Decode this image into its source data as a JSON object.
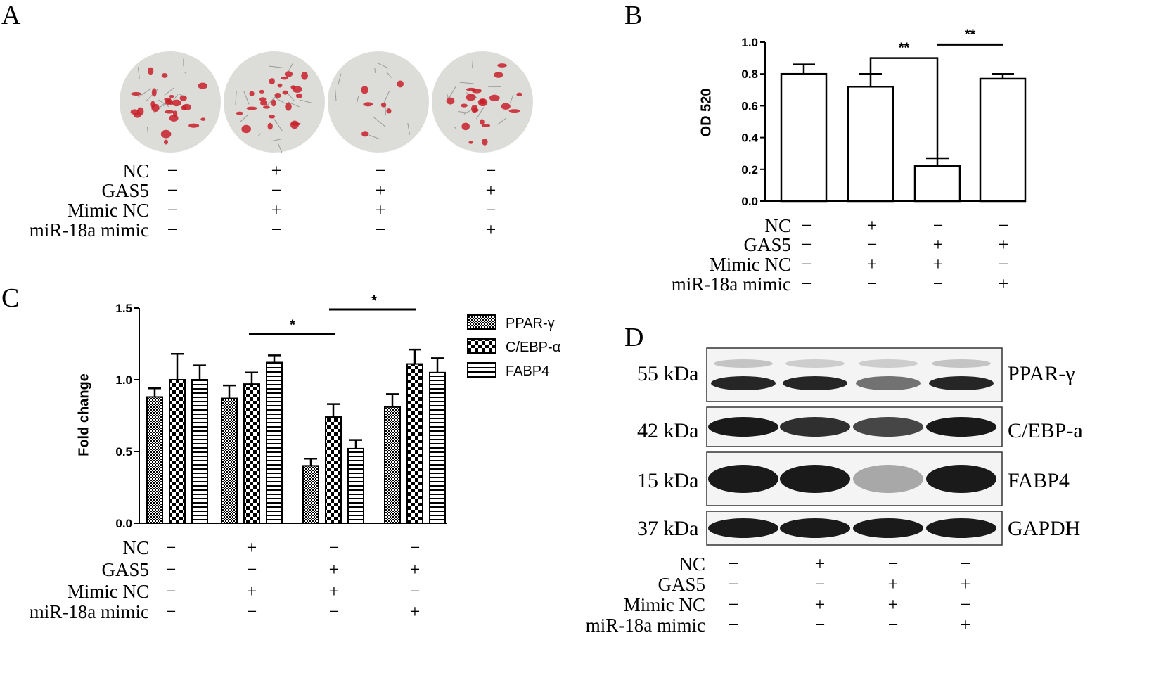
{
  "panels": {
    "a": "A",
    "b": "B",
    "c": "C",
    "d": "D"
  },
  "conditions": {
    "labels": [
      "NC",
      "GAS5",
      "Mimic NC",
      "miR-18a mimic"
    ],
    "marks": [
      [
        "−",
        "+",
        "−",
        "−"
      ],
      [
        "−",
        "−",
        "+",
        "+"
      ],
      [
        "−",
        "+",
        "+",
        "−"
      ],
      [
        "−",
        "−",
        "−",
        "+"
      ]
    ]
  },
  "panel_d": {
    "bands": [
      {
        "size": "55 kDa",
        "protein": "PPAR-γ"
      },
      {
        "size": "42 kDa",
        "protein": "C/EBP-a"
      },
      {
        "size": "15 kDa",
        "protein": "FABP4"
      },
      {
        "size": "37 kDa",
        "protein": "GAPDH"
      }
    ]
  },
  "colors": {
    "stain_red": "#c8202a",
    "background_cell": "#dcdcd8",
    "blot_band": "#1a1a1a"
  },
  "chart_data": [
    {
      "id": "B",
      "type": "bar",
      "categories": [
        "1",
        "2",
        "3",
        "4"
      ],
      "values": [
        0.8,
        0.72,
        0.22,
        0.77
      ],
      "errors": [
        0.06,
        0.08,
        0.05,
        0.03
      ],
      "ylabel": "OD 520",
      "ylim": [
        0,
        1.0
      ],
      "yticks": [
        "0.0",
        "0.2",
        "0.4",
        "0.6",
        "0.8",
        "1.0"
      ],
      "significance": [
        {
          "from": 1,
          "to": 2,
          "label": "**"
        },
        {
          "from": 2,
          "to": 3,
          "label": "**"
        }
      ]
    },
    {
      "id": "C",
      "type": "bar",
      "categories": [
        "1",
        "2",
        "3",
        "4"
      ],
      "ylabel": "Fold change",
      "ylim": [
        0,
        1.5
      ],
      "yticks": [
        "0.0",
        "0.5",
        "1.0",
        "1.5"
      ],
      "series": [
        {
          "name": "PPAR-γ",
          "values": [
            0.88,
            0.87,
            0.4,
            0.81
          ],
          "errors": [
            0.06,
            0.09,
            0.05,
            0.09
          ]
        },
        {
          "name": "C/EBP-α",
          "values": [
            1.0,
            0.97,
            0.74,
            1.11
          ],
          "errors": [
            0.18,
            0.08,
            0.09,
            0.1
          ]
        },
        {
          "name": "FABP4",
          "values": [
            1.0,
            1.12,
            0.52,
            1.05
          ],
          "errors": [
            0.1,
            0.05,
            0.06,
            0.1
          ]
        }
      ],
      "significance": [
        {
          "from": 1,
          "to": 2,
          "label": "*"
        },
        {
          "from": 2,
          "to": 3,
          "label": "*"
        }
      ],
      "legend": "top-right"
    }
  ]
}
